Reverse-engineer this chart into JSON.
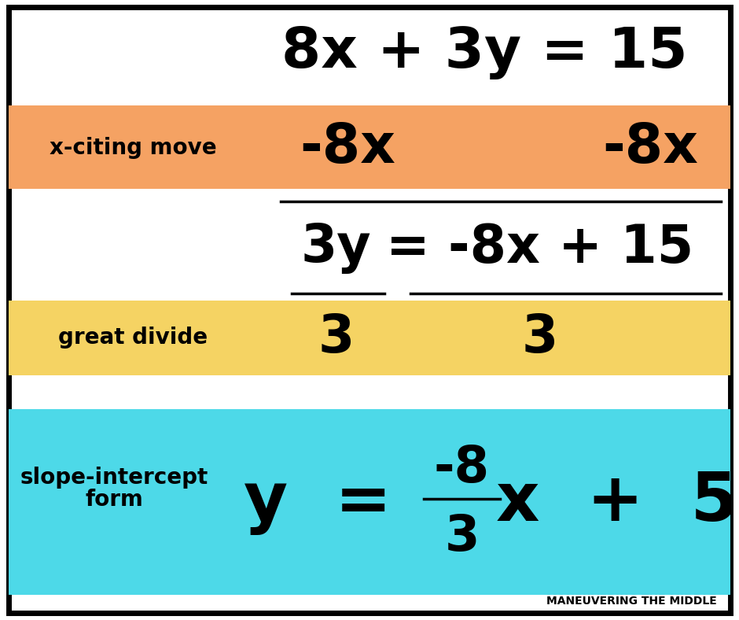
{
  "bg_color": "#ffffff",
  "border_color": "#000000",
  "orange_color": "#F5A263",
  "yellow_color": "#F5D363",
  "cyan_color": "#4DD9E8",
  "text_color": "#000000",
  "title_eq": "8x + 3y = 15",
  "xciting_label": "x-citing move",
  "xciting_eq_left": "-8x",
  "xciting_eq_right": "-8x",
  "divide_label": "great divide",
  "divide_left": "3",
  "divide_right": "3",
  "final_label_line1": "slope-intercept",
  "final_label_line2": "form",
  "watermark": "MANEUVERING THE MIDDLE",
  "fig_width": 9.4,
  "fig_height": 7.88,
  "dpi": 100
}
